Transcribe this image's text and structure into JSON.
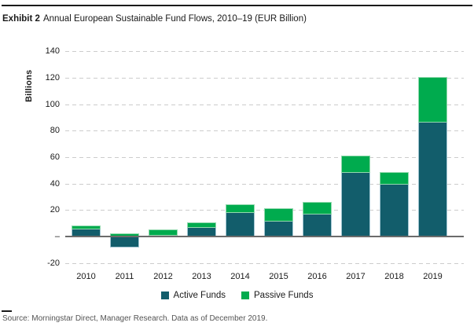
{
  "header": {
    "exhibit_label": "Exhibit 2",
    "title_rest": "Annual European Sustainable Fund Flows, 2010–19 (EUR Billion)"
  },
  "chart_data": {
    "type": "bar",
    "stacked": true,
    "title": "Annual European Sustainable Fund Flows, 2010–19 (EUR Billion)",
    "categories": [
      "2010",
      "2011",
      "2012",
      "2013",
      "2014",
      "2015",
      "2016",
      "2017",
      "2018",
      "2019"
    ],
    "series": [
      {
        "name": "Active Funds",
        "color": "#125d6b",
        "edge": "#a3c6d2",
        "values": [
          6,
          -7,
          1,
          7,
          18.5,
          12,
          17.5,
          48.5,
          40,
          87
        ]
      },
      {
        "name": "Passive Funds",
        "color": "#00ab4e",
        "edge": "#93d9ae",
        "values": [
          2,
          2,
          3.5,
          3,
          5.5,
          8.5,
          8,
          12,
          8,
          33
        ]
      }
    ],
    "ylabel": "Billions",
    "ylim": [
      -20,
      140
    ],
    "yticks": [
      140,
      120,
      100,
      80,
      60,
      40,
      20,
      0,
      -20
    ],
    "zero_tick_label": "–",
    "grid": "dashed-horizontal",
    "legend_position": "bottom-center",
    "colors": {
      "grid": "#cccccc",
      "zero_line": "#6b6b6b",
      "text": "#1a1a1a"
    }
  },
  "footer": {
    "source": "Source: Morningstar Direct, Manager Research. Data as of December 2019."
  }
}
